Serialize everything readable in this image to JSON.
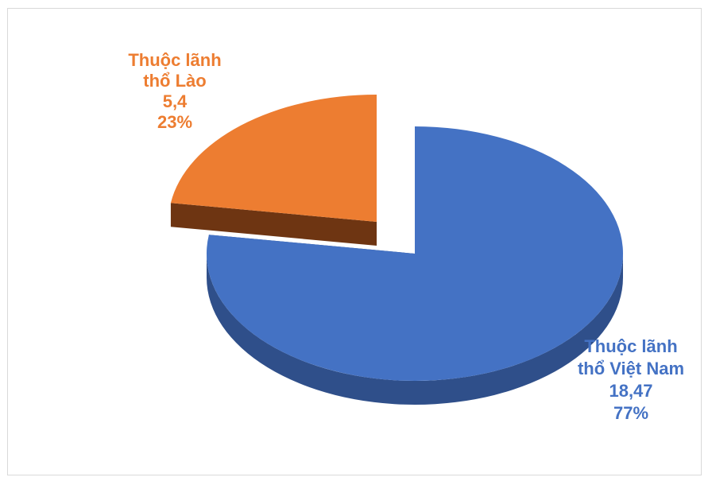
{
  "chart_data": {
    "type": "pie",
    "style": "3d-exploded",
    "series": [
      {
        "values": [
          18.47,
          5.4
        ],
        "categories": [
          "Thuộc lãnh thổ Việt Nam",
          "Thuộc lãnh thổ Lào"
        ],
        "percent_labels": [
          "77%",
          "23%"
        ],
        "value_labels": [
          "18,47",
          "5,4"
        ],
        "label_lines": [
          [
            "Thuộc lãnh",
            "thổ Việt Nam",
            "18,47",
            "77%"
          ],
          [
            "Thuộc lãnh",
            "thổ Lào",
            "5,4",
            "23%"
          ]
        ]
      }
    ],
    "colors": [
      "#4472c4",
      "#ed7d31"
    ],
    "side_colors": [
      "#2f4f8a",
      "#6e3512"
    ],
    "label_colors": [
      "#4472c4",
      "#ed7d31"
    ],
    "legend": "none"
  }
}
